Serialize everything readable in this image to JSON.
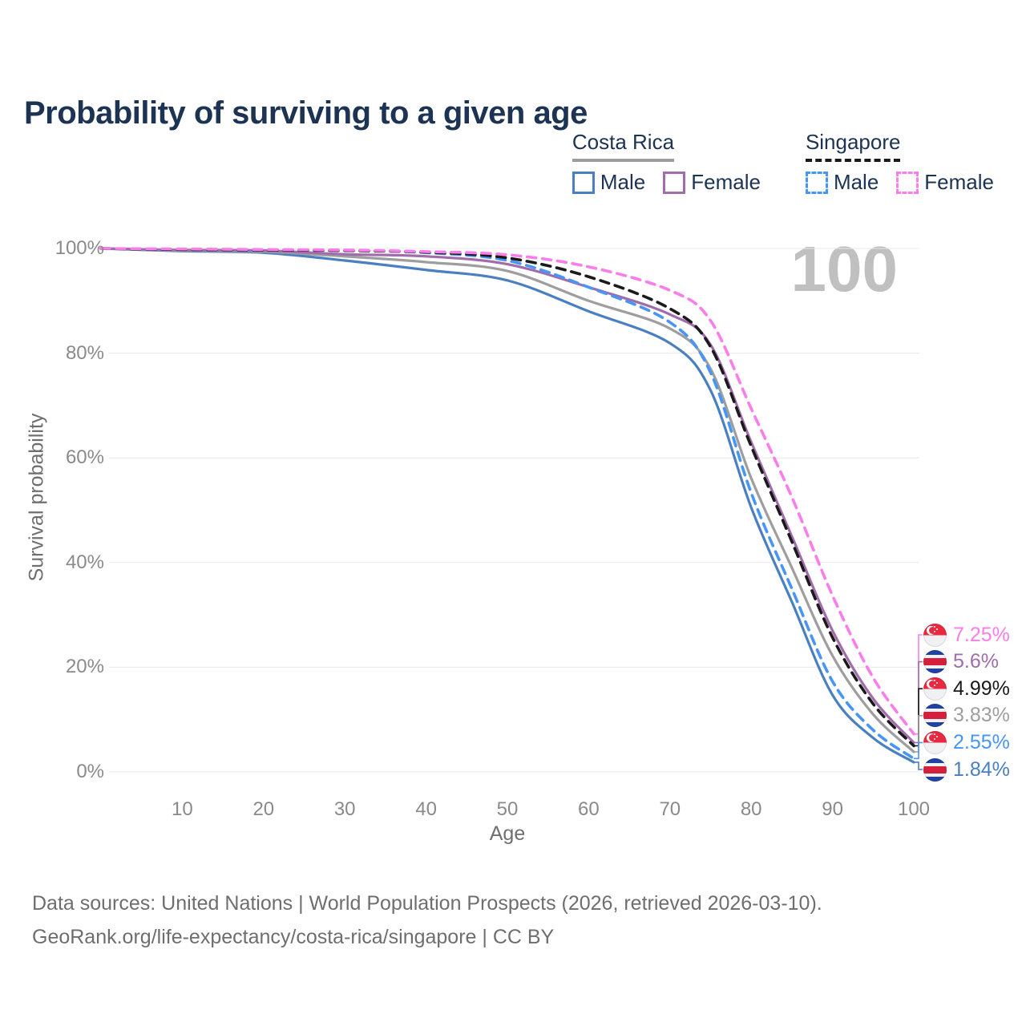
{
  "title": "Probability of surviving to a given age",
  "watermark": "100",
  "legend": {
    "groups": [
      {
        "name": "Costa Rica",
        "line_style": "solid",
        "line_color": "#9e9e9e",
        "items": [
          {
            "label": "Male",
            "series": "cr_male"
          },
          {
            "label": "Female",
            "series": "cr_female"
          }
        ]
      },
      {
        "name": "Singapore",
        "line_style": "dashed",
        "line_color": "#1a1a1a",
        "items": [
          {
            "label": "Male",
            "series": "sg_male"
          },
          {
            "label": "Female",
            "series": "sg_female"
          }
        ]
      }
    ]
  },
  "chart_data": {
    "type": "line",
    "title": "Probability of surviving to a given age",
    "xlabel": "Age",
    "ylabel": "Survival probability",
    "xlim": [
      0,
      100
    ],
    "ylim": [
      0,
      100
    ],
    "x_ticks": [
      10,
      20,
      30,
      40,
      50,
      60,
      70,
      80,
      90,
      100
    ],
    "y_ticks": [
      "0%",
      "20%",
      "40%",
      "60%",
      "80%",
      "100%"
    ],
    "grid": "horizontal",
    "legend_position": "top-right",
    "x": [
      0,
      10,
      20,
      30,
      40,
      50,
      60,
      70,
      75,
      80,
      85,
      90,
      95,
      100
    ],
    "series": [
      {
        "id": "cr_male",
        "name": "Costa Rica Male",
        "color": "#4a7fc1",
        "dash": false,
        "flag": "costa-rica",
        "end_label": "1.84%",
        "values": [
          100,
          99.5,
          99.2,
          97.7,
          95.9,
          93.9,
          88.0,
          81.9,
          72.9,
          50.5,
          32.5,
          14.7,
          6.5,
          1.84
        ]
      },
      {
        "id": "cr_total",
        "name": "Costa Rica",
        "color": "#9e9e9e",
        "dash": false,
        "flag": "costa-rica",
        "end_label": "3.83%",
        "values": [
          100,
          99.6,
          99.4,
          98.5,
          97.4,
          95.7,
          90.0,
          84.7,
          77.0,
          56.1,
          39.0,
          22.2,
          11.0,
          3.83
        ]
      },
      {
        "id": "cr_female",
        "name": "Costa Rica Female",
        "color": "#a06cab",
        "dash": false,
        "flag": "costa-rica",
        "end_label": "5.6%",
        "values": [
          100,
          99.7,
          99.6,
          98.9,
          98.5,
          97.0,
          92.6,
          87.4,
          81.6,
          63.0,
          45.0,
          27.0,
          14.0,
          5.6
        ]
      },
      {
        "id": "sg_male",
        "name": "Singapore Male",
        "color": "#4695f7",
        "dash": true,
        "flag": "singapore",
        "end_label": "2.55%",
        "values": [
          100,
          99.8,
          99.7,
          99.6,
          99.2,
          97.7,
          92.6,
          85.9,
          76.3,
          53.3,
          35.0,
          17.3,
          8.0,
          2.55
        ]
      },
      {
        "id": "sg_total",
        "name": "Singapore",
        "color": "#1a1a1a",
        "dash": true,
        "flag": "singapore",
        "end_label": "4.99%",
        "values": [
          100,
          99.8,
          99.7,
          99.6,
          99.3,
          98.2,
          94.6,
          88.5,
          81.2,
          62.2,
          44.0,
          25.7,
          13.0,
          4.99
        ]
      },
      {
        "id": "sg_female",
        "name": "Singapore Female",
        "color": "#fa7de9",
        "dash": true,
        "flag": "singapore",
        "end_label": "7.25%",
        "values": [
          100,
          99.9,
          99.8,
          99.7,
          99.4,
          98.8,
          96.5,
          92.0,
          86.2,
          69.4,
          52.5,
          33.7,
          18.0,
          7.25
        ]
      }
    ]
  },
  "footer": {
    "line1": "Data sources: United Nations | World Population Prospects (2026, retrieved 2026-03-10).",
    "line2": "GeoRank.org/life-expectancy/costa-rica/singapore | CC BY"
  }
}
